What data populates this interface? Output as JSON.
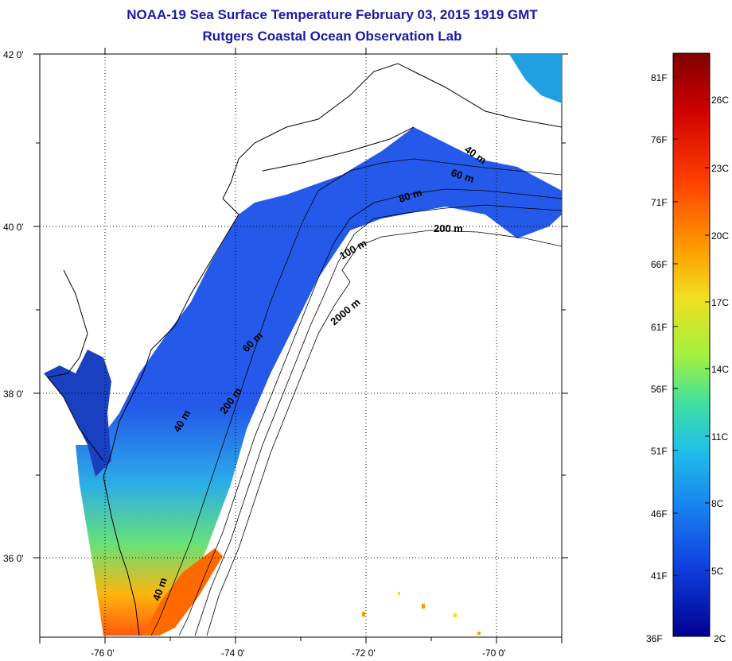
{
  "header": {
    "title": "NOAA-19 Sea Surface Temperature February 03, 2015 1919 GMT",
    "subtitle": "Rutgers Coastal Ocean Observation Lab"
  },
  "map": {
    "lat_labels": [
      "42 0'",
      "40 0'",
      "38 0'",
      "36 0'"
    ],
    "lon_labels": [
      "-76 0'",
      "-74 0'",
      "-72 0'",
      "-70 0'"
    ],
    "lat_range": [
      35.0,
      42.0
    ],
    "lon_range": [
      -77.0,
      -69.0
    ],
    "grid": true,
    "contour_labels": [
      "40 m",
      "60 m",
      "80 m",
      "200 m",
      "100 m",
      "2000 m",
      "60 m",
      "200 m",
      "40 m",
      "40 m"
    ]
  },
  "colorbar": {
    "f_labels": [
      "81F",
      "76F",
      "71F",
      "66F",
      "61F",
      "56F",
      "51F",
      "46F",
      "41F",
      "36F"
    ],
    "c_labels": [
      "26C",
      "23C",
      "20C",
      "17C",
      "14C",
      "11C",
      "8C",
      "5C",
      "2C"
    ],
    "colors": [
      "#7f0000",
      "#e00000",
      "#ff6000",
      "#ffc000",
      "#d0f030",
      "#60e090",
      "#20c8e0",
      "#1880e8",
      "#1030d0",
      "#000080"
    ]
  }
}
